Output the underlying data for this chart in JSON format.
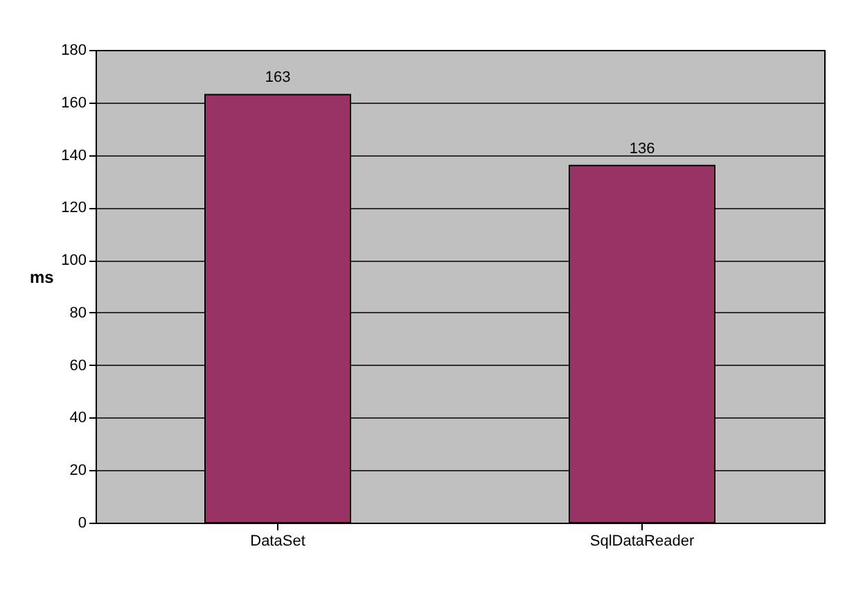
{
  "chart_data": {
    "type": "bar",
    "categories": [
      "DataSet",
      "SqlDataReader"
    ],
    "values": [
      163,
      136
    ],
    "color": "#993366",
    "ylabel": "ms",
    "ylim": [
      0,
      180
    ],
    "yticks": [
      0,
      20,
      40,
      60,
      80,
      100,
      120,
      140,
      160,
      180
    ],
    "grid": "y",
    "data_labels": true
  }
}
